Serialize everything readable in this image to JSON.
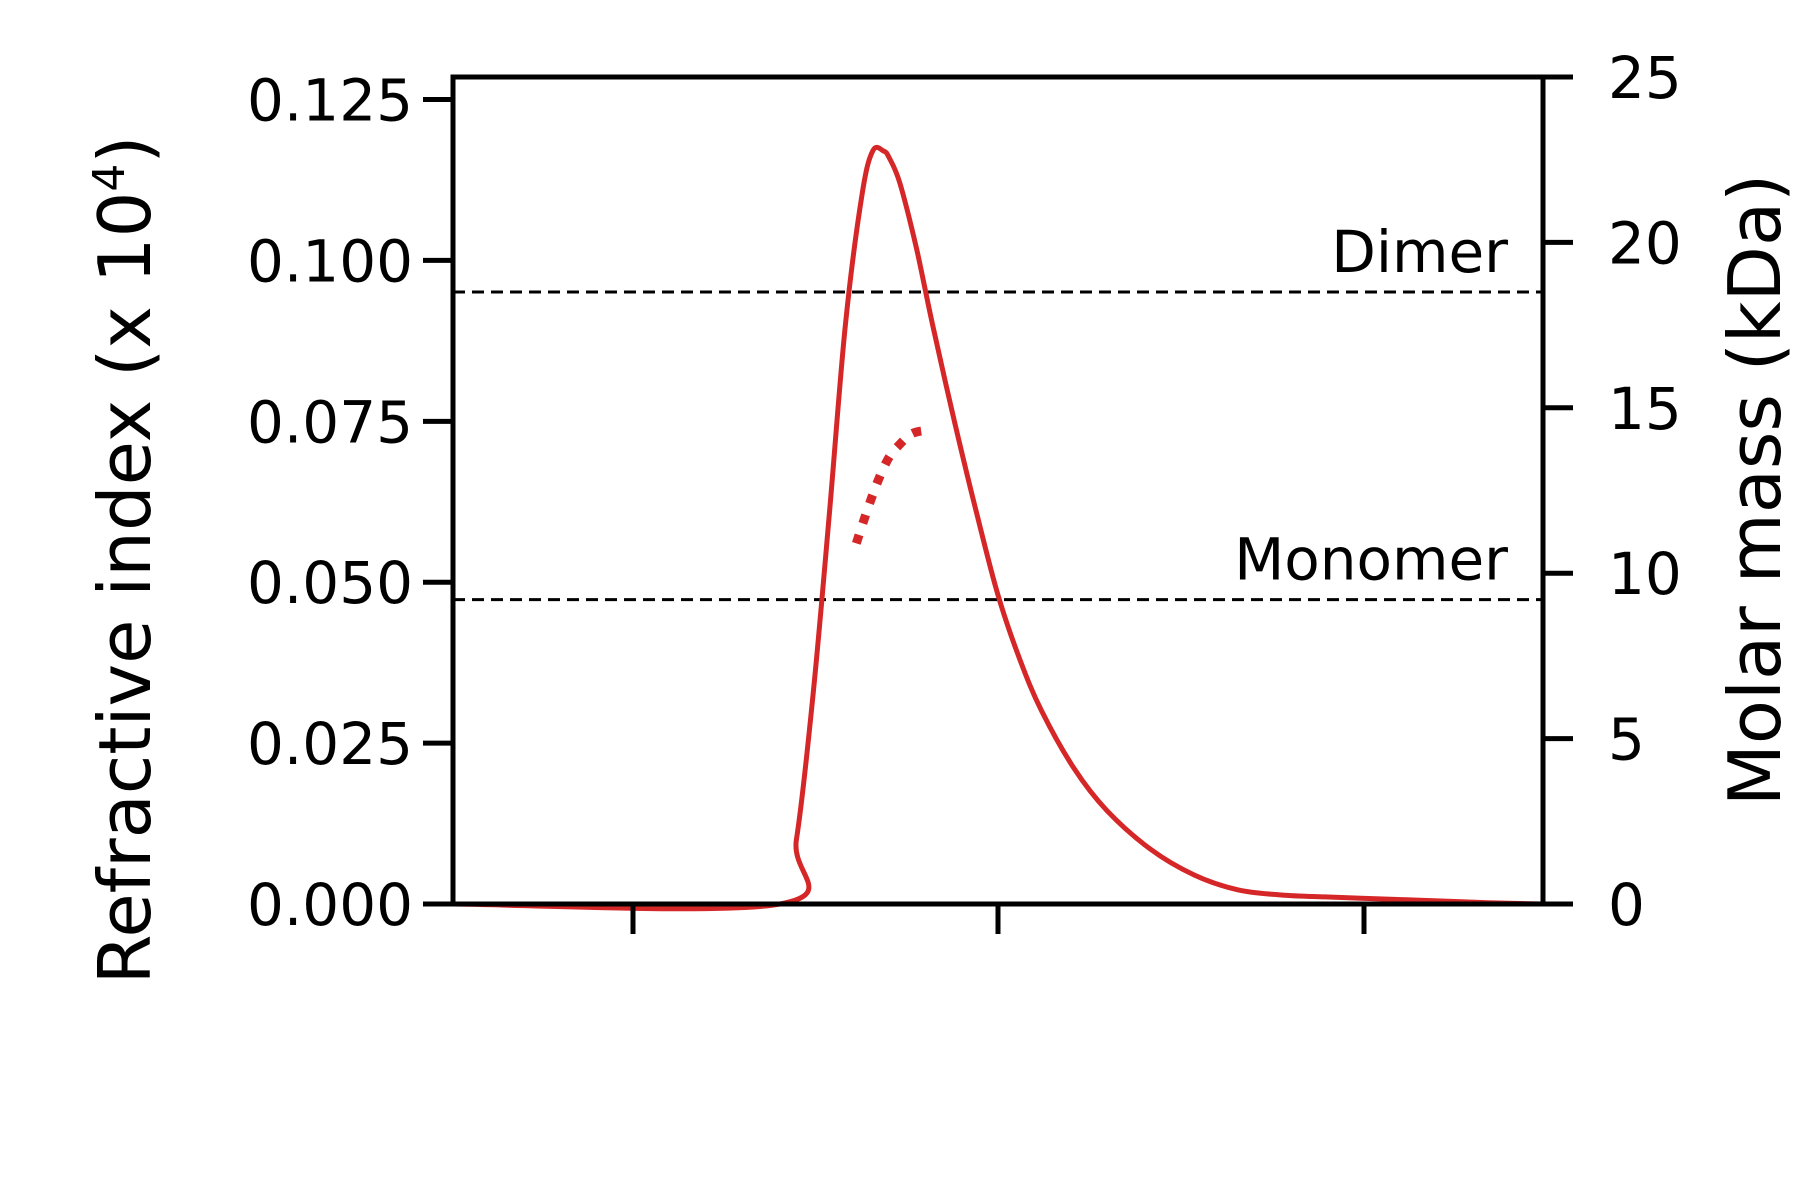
{
  "chart_data": {
    "type": "line",
    "title": "",
    "xlabel": "",
    "x_ticks": [
      "",
      "",
      ""
    ],
    "x_range": [
      0,
      1
    ],
    "left_axis": {
      "label": "Refractive index (x 10",
      "label_superscript": "4",
      "label_suffix": ")",
      "range": [
        0,
        0.1285
      ],
      "ticks": [
        "0.000",
        "0.025",
        "0.050",
        "0.075",
        "0.100",
        "0.125"
      ],
      "tick_values": [
        0,
        0.025,
        0.05,
        0.075,
        0.1,
        0.125
      ]
    },
    "right_axis": {
      "label": "Molar mass (kDa)",
      "range": [
        0,
        25
      ],
      "ticks": [
        "0",
        "5",
        "10",
        "15",
        "20",
        "25"
      ],
      "tick_values": [
        0,
        5,
        10,
        15,
        20,
        25
      ]
    },
    "reference_lines": [
      {
        "label": "Dimer",
        "axis": "right",
        "value": 18.5
      },
      {
        "label": "Monomer",
        "axis": "right",
        "value": 9.2
      }
    ],
    "series": [
      {
        "role": "refractive_index",
        "axis": "left",
        "style": "solid",
        "color": "#d62728",
        "x": [
          0,
          0.3,
          0.315,
          0.33,
          0.345,
          0.36,
          0.375,
          0.385,
          0.395,
          0.4,
          0.41,
          0.425,
          0.44,
          0.46,
          0.48,
          0.5,
          0.52,
          0.54,
          0.57,
          0.6,
          0.64,
          0.68,
          0.72,
          0.76,
          0.8,
          0.85,
          0.9,
          0.95,
          1.0
        ],
        "values": [
          0,
          0,
          0.01,
          0.032,
          0.06,
          0.09,
          0.11,
          0.117,
          0.117,
          0.116,
          0.112,
          0.102,
          0.09,
          0.075,
          0.061,
          0.048,
          0.038,
          0.03,
          0.021,
          0.0145,
          0.0085,
          0.0045,
          0.0022,
          0.0014,
          0.0011,
          0.0008,
          0.0005,
          0.0002,
          0.0
        ]
      },
      {
        "role": "molar_mass",
        "axis": "right",
        "style": "dotted",
        "color": "#d62728",
        "x": [
          0.37,
          0.38,
          0.39,
          0.4,
          0.41,
          0.42,
          0.43,
          0.44
        ],
        "values": [
          10.9,
          11.9,
          12.8,
          13.5,
          13.9,
          14.2,
          14.3,
          14.3
        ]
      }
    ]
  }
}
